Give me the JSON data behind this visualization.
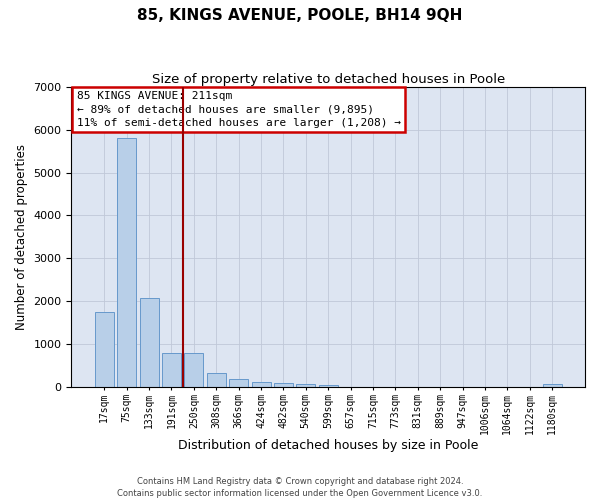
{
  "title": "85, KINGS AVENUE, POOLE, BH14 9QH",
  "subtitle": "Size of property relative to detached houses in Poole",
  "xlabel": "Distribution of detached houses by size in Poole",
  "ylabel": "Number of detached properties",
  "categories": [
    "17sqm",
    "75sqm",
    "133sqm",
    "191sqm",
    "250sqm",
    "308sqm",
    "366sqm",
    "424sqm",
    "482sqm",
    "540sqm",
    "599sqm",
    "657sqm",
    "715sqm",
    "773sqm",
    "831sqm",
    "889sqm",
    "947sqm",
    "1006sqm",
    "1064sqm",
    "1122sqm",
    "1180sqm"
  ],
  "values": [
    1750,
    5800,
    2080,
    800,
    800,
    340,
    195,
    115,
    100,
    65,
    60,
    0,
    0,
    0,
    0,
    0,
    0,
    0,
    0,
    0,
    65
  ],
  "bar_color": "#b8cfe8",
  "bar_edge_color": "#6699cc",
  "vline_color": "#990000",
  "vline_pos": 3.5,
  "annotation_line1": "85 KINGS AVENUE: 211sqm",
  "annotation_line2": "← 89% of detached houses are smaller (9,895)",
  "annotation_line3": "11% of semi-detached houses are larger (1,208) →",
  "annot_box_color": "#cc0000",
  "ylim": [
    0,
    7000
  ],
  "yticks": [
    0,
    1000,
    2000,
    3000,
    4000,
    5000,
    6000,
    7000
  ],
  "grid_color": "#c0c8d8",
  "bg_color": "#dde5f2",
  "footer1": "Contains HM Land Registry data © Crown copyright and database right 2024.",
  "footer2": "Contains public sector information licensed under the Open Government Licence v3.0.",
  "title_fontsize": 11,
  "subtitle_fontsize": 9.5,
  "xlabel_fontsize": 9,
  "ylabel_fontsize": 8.5,
  "ytick_fontsize": 8,
  "xtick_fontsize": 7,
  "annot_fontsize": 8,
  "footer_fontsize": 6
}
